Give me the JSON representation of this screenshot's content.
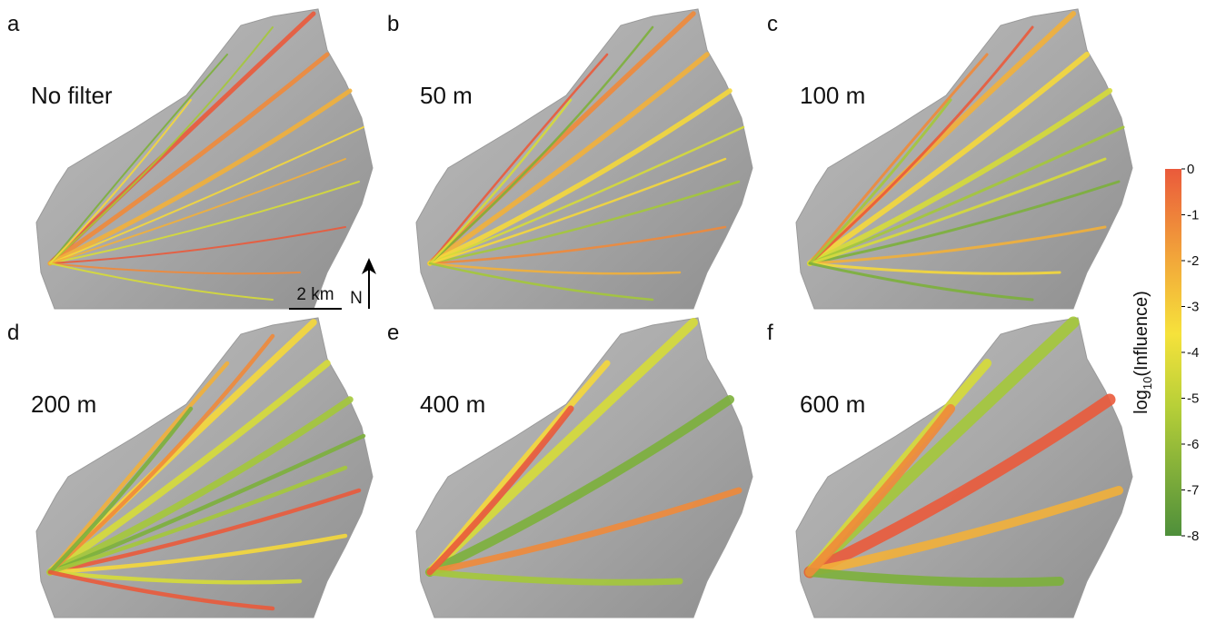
{
  "panels": [
    {
      "letter": "a",
      "label": "No filter"
    },
    {
      "letter": "b",
      "label": "50 m"
    },
    {
      "letter": "c",
      "label": "100 m"
    },
    {
      "letter": "d",
      "label": "200 m"
    },
    {
      "letter": "e",
      "label": "400 m"
    },
    {
      "letter": "f",
      "label": "600 m"
    }
  ],
  "scale_bar": {
    "label": "2 km"
  },
  "north_arrow": {
    "label": "N"
  },
  "colorbar": {
    "label_main": "log",
    "label_sub": "10",
    "label_rest": "(Influence)",
    "ticks": [
      0,
      -1,
      -2,
      -3,
      -4,
      -5,
      -6,
      -7,
      -8
    ]
  }
}
